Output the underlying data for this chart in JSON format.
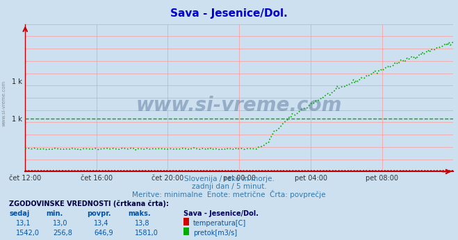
{
  "title": "Sava - Jesenice/Dol.",
  "title_color": "#0000cc",
  "bg_color": "#cce0f0",
  "plot_bg_color": "#cce0f0",
  "grid_color": "#ff9999",
  "watermark_text": "www.si-vreme.com",
  "subtitle1": "Slovenija / reke in morje.",
  "subtitle2": "zadnji dan / 5 minut.",
  "subtitle3": "Meritve: minimalne  Enote: metrične  Črta: povprečje",
  "subtitle_color": "#3377aa",
  "legend_header": "ZGODOVINSKE VREDNOSTI (črtkana črta):",
  "legend_cols": [
    "sedaj",
    "min.",
    "povpr.",
    "maks.",
    "Sava - Jesenice/Dol."
  ],
  "temp_row": [
    "13,1",
    "13,0",
    "13,4",
    "13,8",
    "temperatura[C]"
  ],
  "flow_row": [
    "1542,0",
    "256,8",
    "646,9",
    "1581,0",
    "pretok[m3/s]"
  ],
  "temp_color": "#cc0000",
  "flow_color": "#00aa00",
  "x_tick_labels": [
    "čet 12:00",
    "čet 16:00",
    "čet 20:00",
    "pet 00:00",
    "pet 04:00",
    "pet 08:00"
  ],
  "x_tick_positions": [
    0.0,
    0.167,
    0.333,
    0.5,
    0.667,
    0.833
  ],
  "ylim": [
    0,
    1800
  ],
  "flow_avg": 646.9,
  "temp_avg": 13.4,
  "n_points": 288,
  "y_tick_vals": [
    646.9,
    1100
  ],
  "y_tick_labels": [
    "1 k",
    "1 k"
  ]
}
